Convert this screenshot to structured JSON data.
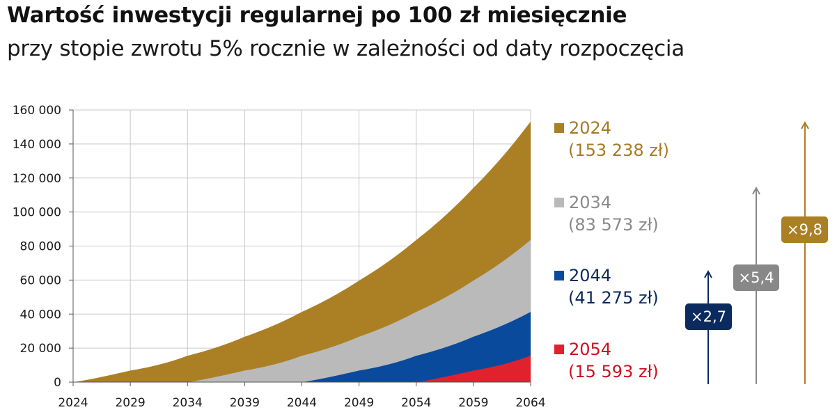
{
  "header": {
    "title": "Wartość inwestycji regularnej po 100 zł miesięcznie",
    "subtitle": "przy stopie zwrotu 5% rocznie w zależności od daty rozpoczęcia"
  },
  "colors": {
    "2024": "#AB8025",
    "2034": "#BABABA",
    "2044": "#0A4A9C",
    "2054": "#E0212E",
    "text_2024": "#A57A24",
    "text_2034": "#8A8A8A",
    "text_2044": "#0B2A5E",
    "text_2054": "#CC1020",
    "badge_2044": "#0B2A5E",
    "badge_2034": "#888888",
    "badge_2024": "#AB8025"
  },
  "legend": [
    {
      "year": "2024",
      "value": "(153 238 zł)"
    },
    {
      "year": "2034",
      "value": "(83 573 zł)"
    },
    {
      "year": "2044",
      "value": "(41 275 zł)"
    },
    {
      "year": "2054",
      "value": "(15 593 zł)"
    }
  ],
  "multipliers": [
    {
      "label": "×2,7",
      "start": "2044"
    },
    {
      "label": "×5,4",
      "start": "2034"
    },
    {
      "label": "×9,8",
      "start": "2024"
    }
  ],
  "chart_data": {
    "type": "area",
    "x": [
      2024,
      2029,
      2034,
      2039,
      2044,
      2049,
      2054,
      2059,
      2064
    ],
    "x_tick_labels": [
      "2024",
      "2029",
      "2034",
      "2039",
      "2044",
      "2049",
      "2054",
      "2059",
      "2064"
    ],
    "ylim": [
      0,
      160000
    ],
    "y_tick_labels": [
      "0",
      "20 000",
      "40 000",
      "60 000",
      "80 000",
      "100 000",
      "120 000",
      "140 000",
      "160 000"
    ],
    "y_ticks": [
      0,
      20000,
      40000,
      60000,
      80000,
      100000,
      120000,
      140000,
      160000
    ],
    "grid": true,
    "overlapping": true,
    "series": [
      {
        "name": "2024",
        "values": [
          0,
          6800,
          15500,
          26700,
          41275,
          59700,
          83573,
          114200,
          153238
        ]
      },
      {
        "name": "2034",
        "values": [
          0,
          0,
          0,
          6800,
          15500,
          26700,
          41275,
          59700,
          83573
        ]
      },
      {
        "name": "2044",
        "values": [
          0,
          0,
          0,
          0,
          0,
          6800,
          15500,
          26700,
          41275
        ]
      },
      {
        "name": "2054",
        "values": [
          0,
          0,
          0,
          0,
          0,
          0,
          0,
          6800,
          15593
        ]
      }
    ]
  }
}
